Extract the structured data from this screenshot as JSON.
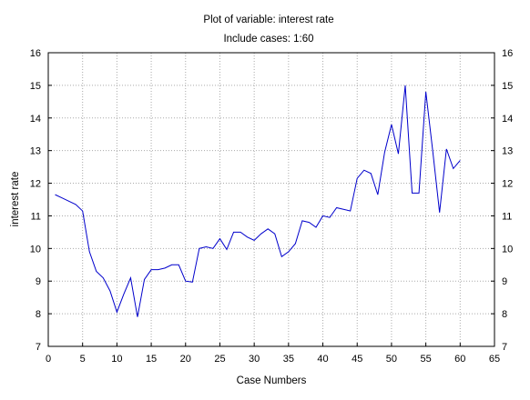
{
  "chart_data": {
    "type": "line",
    "title": "Plot of variable: interest rate",
    "subtitle": "Include cases: 1:60",
    "xlabel": "Case Numbers",
    "ylabel": "interest rate",
    "xlim": [
      0,
      65
    ],
    "ylim": [
      7,
      16
    ],
    "xticks": [
      0,
      5,
      10,
      15,
      20,
      25,
      30,
      35,
      40,
      45,
      50,
      55,
      60,
      65
    ],
    "yticks": [
      7,
      8,
      9,
      10,
      11,
      12,
      13,
      14,
      15,
      16
    ],
    "grid": true,
    "line_color": "#0000cc",
    "series": [
      {
        "x": [
          1,
          2,
          3,
          4,
          5,
          6,
          7,
          8,
          9,
          10,
          11,
          12,
          13,
          14,
          15,
          16,
          17,
          18,
          19,
          20,
          21,
          22,
          23,
          24,
          25,
          26,
          27,
          28,
          29,
          30,
          31,
          32,
          33,
          34,
          35,
          36,
          37,
          38,
          39,
          40,
          41,
          42,
          43,
          44,
          45,
          46,
          47,
          48,
          49,
          50,
          51,
          52,
          53,
          54,
          55,
          56,
          57,
          58,
          59,
          60
        ],
        "values": [
          11.65,
          11.55,
          11.45,
          11.35,
          11.15,
          9.9,
          9.3,
          9.1,
          8.7,
          8.05,
          8.6,
          9.1,
          7.9,
          9.05,
          9.35,
          9.35,
          9.4,
          9.5,
          9.5,
          9.0,
          8.97,
          10.0,
          10.05,
          10.0,
          10.3,
          9.97,
          10.5,
          10.5,
          10.35,
          10.25,
          10.45,
          10.6,
          10.45,
          9.75,
          9.9,
          10.15,
          10.85,
          10.8,
          10.65,
          11.0,
          10.95,
          11.25,
          11.2,
          11.15,
          12.15,
          12.4,
          12.3,
          11.65,
          12.95,
          13.8,
          12.9,
          15.0,
          11.7,
          11.7,
          14.8,
          13.0,
          11.1,
          13.05,
          12.45,
          12.7
        ]
      }
    ]
  }
}
